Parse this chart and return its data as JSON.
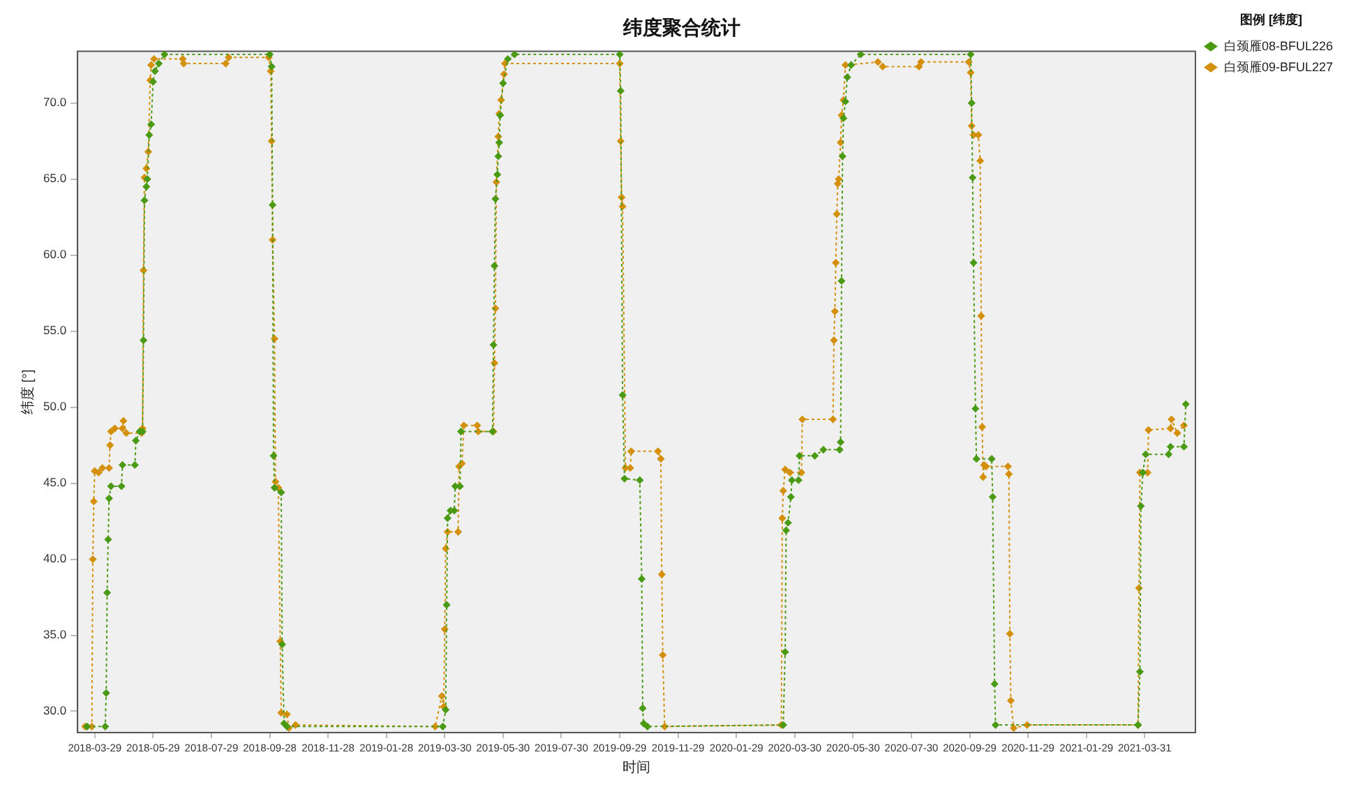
{
  "chart_data": {
    "type": "line",
    "title": "纬度聚合统计",
    "xlabel": "时间",
    "ylabel": "纬度 [°]",
    "legend_title": "图例 [纬度]",
    "legend": "top right",
    "grid": false,
    "marker": "diamond",
    "line_style": "dotted",
    "xlim": [
      "2018-03-11",
      "2021-05-23"
    ],
    "xticks": [
      "2018-03-29",
      "2018-05-29",
      "2018-07-29",
      "2018-09-28",
      "2018-11-28",
      "2019-01-28",
      "2019-03-30",
      "2019-05-30",
      "2019-07-30",
      "2019-09-29",
      "2019-11-29",
      "2020-01-29",
      "2020-03-30",
      "2020-05-30",
      "2020-07-30",
      "2020-09-29",
      "2020-11-29",
      "2021-01-29",
      "2021-03-31"
    ],
    "ylim": [
      28.6,
      73.4
    ],
    "yticks": [
      {
        "value": 30,
        "label": "30.0"
      },
      {
        "value": 35,
        "label": "35.0"
      },
      {
        "value": 40,
        "label": "40.0"
      },
      {
        "value": 45,
        "label": "45.0"
      },
      {
        "value": 50,
        "label": "50.0"
      },
      {
        "value": 55,
        "label": "55.0"
      },
      {
        "value": 60,
        "label": "60.0"
      },
      {
        "value": 65,
        "label": "65.0"
      },
      {
        "value": 70,
        "label": "70.0"
      }
    ],
    "series": [
      {
        "name": "白颈雁08-BFUL226",
        "color": "#4a9a14",
        "x": [
          "2018-03-21",
          "2018-04-09",
          "2018-04-10",
          "2018-04-11",
          "2018-04-12",
          "2018-04-13",
          "2018-04-15",
          "2018-04-26",
          "2018-04-27",
          "2018-05-10",
          "2018-05-11",
          "2018-05-15",
          "2018-05-18",
          "2018-05-19",
          "2018-05-20",
          "2018-05-22",
          "2018-05-23",
          "2018-05-25",
          "2018-05-27",
          "2018-05-29",
          "2018-05-31",
          "2018-06-04",
          "2018-06-10",
          "2018-09-28",
          "2018-09-30",
          "2018-10-01",
          "2018-10-02",
          "2018-10-03",
          "2018-10-10",
          "2018-10-11",
          "2018-10-13",
          "2018-10-16",
          "2019-03-28",
          "2019-03-31",
          "2019-04-01",
          "2019-04-02",
          "2019-04-05",
          "2019-04-09",
          "2019-04-10",
          "2019-04-15",
          "2019-04-16",
          "2019-05-19",
          "2019-05-20",
          "2019-05-21",
          "2019-05-22",
          "2019-05-24",
          "2019-05-25",
          "2019-05-26",
          "2019-05-27",
          "2019-05-30",
          "2019-06-04",
          "2019-06-11",
          "2019-09-29",
          "2019-09-30",
          "2019-10-02",
          "2019-10-04",
          "2019-10-20",
          "2019-10-22",
          "2019-10-23",
          "2019-10-24",
          "2019-10-28",
          "2020-03-18",
          "2020-03-20",
          "2020-03-21",
          "2020-03-23",
          "2020-03-26",
          "2020-03-27",
          "2020-04-03",
          "2020-04-04",
          "2020-04-20",
          "2020-04-29",
          "2020-05-16",
          "2020-05-17",
          "2020-05-18",
          "2020-05-19",
          "2020-05-20",
          "2020-05-22",
          "2020-05-24",
          "2020-05-28",
          "2020-06-07",
          "2020-09-30",
          "2020-10-01",
          "2020-10-02",
          "2020-10-03",
          "2020-10-05",
          "2020-10-06",
          "2020-10-22",
          "2020-10-23",
          "2020-10-25",
          "2020-10-26",
          "2021-03-24",
          "2021-03-26",
          "2021-03-27",
          "2021-03-29",
          "2021-04-01",
          "2021-04-25",
          "2021-04-27",
          "2021-05-11",
          "2021-05-13"
        ],
        "values": [
          29.0,
          29.0,
          31.2,
          37.8,
          41.3,
          44.0,
          44.8,
          44.8,
          46.2,
          46.2,
          47.8,
          48.4,
          48.4,
          54.4,
          63.6,
          64.5,
          65.0,
          67.9,
          68.6,
          71.4,
          72.1,
          72.6,
          73.2,
          73.2,
          72.4,
          63.3,
          46.8,
          44.7,
          44.4,
          34.4,
          29.2,
          29.0,
          29.0,
          30.1,
          37.0,
          42.7,
          43.2,
          43.2,
          44.8,
          44.8,
          48.4,
          48.4,
          54.1,
          59.3,
          63.7,
          65.3,
          66.5,
          67.4,
          69.2,
          71.3,
          72.9,
          73.2,
          73.2,
          70.8,
          50.8,
          45.3,
          45.2,
          38.7,
          30.2,
          29.2,
          29.0,
          29.1,
          33.9,
          41.9,
          42.4,
          44.1,
          45.2,
          45.2,
          46.8,
          46.8,
          47.2,
          47.2,
          47.7,
          58.3,
          66.5,
          69.0,
          70.1,
          71.7,
          72.5,
          73.2,
          73.2,
          70.0,
          65.1,
          59.5,
          49.9,
          46.6,
          46.6,
          44.1,
          31.8,
          29.1,
          29.1,
          32.6,
          43.5,
          45.7,
          46.9,
          46.9,
          47.4,
          47.4,
          50.2
        ]
      },
      {
        "name": "白颈雁09-BFUL227",
        "color": "#d4900a",
        "x": [
          "2018-03-19",
          "2018-03-26",
          "2018-03-27",
          "2018-03-28",
          "2018-03-29",
          "2018-04-02",
          "2018-04-06",
          "2018-04-13",
          "2018-04-14",
          "2018-04-15",
          "2018-04-19",
          "2018-04-27",
          "2018-04-28",
          "2018-05-01",
          "2018-05-17",
          "2018-05-18",
          "2018-05-19",
          "2018-05-20",
          "2018-05-22",
          "2018-05-24",
          "2018-05-26",
          "2018-05-27",
          "2018-05-30",
          "2018-06-29",
          "2018-06-30",
          "2018-08-13",
          "2018-08-16",
          "2018-09-27",
          "2018-09-29",
          "2018-09-30",
          "2018-10-01",
          "2018-10-03",
          "2018-10-04",
          "2018-10-07",
          "2018-10-09",
          "2018-10-10",
          "2018-10-16",
          "2018-10-18",
          "2018-10-25",
          "2019-03-20",
          "2019-03-27",
          "2019-03-29",
          "2019-03-30",
          "2019-03-31",
          "2019-04-02",
          "2019-04-13",
          "2019-04-14",
          "2019-04-17",
          "2019-04-19",
          "2019-05-03",
          "2019-05-04",
          "2019-05-20",
          "2019-05-21",
          "2019-05-22",
          "2019-05-23",
          "2019-05-25",
          "2019-05-26",
          "2019-05-28",
          "2019-05-31",
          "2019-06-01",
          "2019-09-29",
          "2019-09-30",
          "2019-10-01",
          "2019-10-02",
          "2019-10-05",
          "2019-10-10",
          "2019-10-11",
          "2019-11-08",
          "2019-11-11",
          "2019-11-12",
          "2019-11-13",
          "2019-11-15",
          "2020-03-16",
          "2020-03-17",
          "2020-03-18",
          "2020-03-20",
          "2020-03-25",
          "2020-04-06",
          "2020-04-07",
          "2020-05-09",
          "2020-05-10",
          "2020-05-11",
          "2020-05-12",
          "2020-05-13",
          "2020-05-14",
          "2020-05-15",
          "2020-05-17",
          "2020-05-18",
          "2020-05-20",
          "2020-05-22",
          "2020-06-25",
          "2020-06-30",
          "2020-08-07",
          "2020-08-09",
          "2020-09-28",
          "2020-09-30",
          "2020-10-01",
          "2020-10-03",
          "2020-10-08",
          "2020-10-10",
          "2020-10-11",
          "2020-10-12",
          "2020-10-13",
          "2020-10-14",
          "2020-10-16",
          "2020-11-08",
          "2020-11-09",
          "2020-11-10",
          "2020-11-11",
          "2020-11-14",
          "2020-11-28",
          "2021-03-24",
          "2021-03-25",
          "2021-03-26",
          "2021-04-03",
          "2021-04-04",
          "2021-04-27",
          "2021-04-28",
          "2021-05-04",
          "2021-05-11"
        ],
        "values": [
          29.0,
          29.0,
          40.0,
          43.8,
          45.8,
          45.7,
          46.0,
          46.0,
          47.5,
          48.4,
          48.6,
          48.6,
          49.1,
          48.3,
          48.3,
          48.6,
          59.0,
          65.1,
          65.7,
          66.8,
          71.5,
          72.5,
          72.9,
          72.9,
          72.6,
          72.6,
          73.0,
          73.0,
          72.1,
          67.5,
          61.0,
          54.5,
          45.1,
          44.7,
          34.6,
          29.9,
          29.8,
          28.9,
          29.1,
          29.0,
          31.0,
          30.3,
          35.4,
          40.7,
          41.8,
          41.8,
          46.1,
          46.3,
          48.8,
          48.8,
          48.4,
          48.4,
          52.9,
          56.5,
          64.8,
          67.8,
          69.3,
          70.2,
          71.9,
          72.6,
          72.6,
          67.5,
          63.8,
          63.2,
          46.0,
          46.0,
          47.1,
          47.1,
          46.6,
          39.0,
          33.7,
          29.0,
          29.1,
          42.7,
          44.5,
          45.9,
          45.7,
          45.7,
          49.2,
          49.2,
          54.4,
          56.3,
          59.5,
          62.7,
          64.7,
          65.0,
          67.4,
          69.2,
          70.2,
          72.5,
          72.7,
          72.4,
          72.4,
          72.7,
          72.7,
          72.0,
          68.5,
          67.9,
          67.9,
          66.2,
          56.0,
          48.7,
          45.4,
          46.2,
          46.1,
          46.1,
          45.6,
          35.1,
          30.7,
          28.9,
          29.1,
          29.1,
          38.1,
          45.7,
          45.7,
          48.5,
          48.6,
          49.2,
          48.3,
          48.8
        ]
      }
    ]
  }
}
